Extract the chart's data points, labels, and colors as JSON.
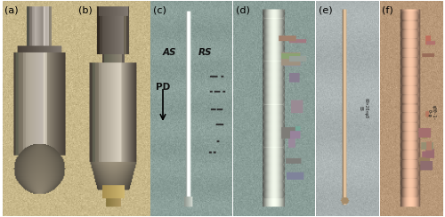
{
  "figure_width": 5.0,
  "figure_height": 2.44,
  "dpi": 100,
  "panels": [
    "(a)",
    "(b)",
    "(c)",
    "(d)",
    "(e)",
    "(f)"
  ],
  "label_fontsize": 8,
  "label_color": "#000000",
  "background_color": "#ffffff",
  "bg_wood": "#c8b88a",
  "bg_green": "#8aa898",
  "bg_metal": "#aab0b0",
  "bg_copper": "#c09878",
  "tool_dark": "#6a5848",
  "tool_mid": "#8a7868",
  "tool_light": "#a89888",
  "tool_highlight": "#c0b0a0",
  "tool_shank_dark": "#585040",
  "rod_white": "#d8e0d8",
  "rod_copper": "#c0a080",
  "ridge_color": "#909088",
  "debris_color": "#707068"
}
